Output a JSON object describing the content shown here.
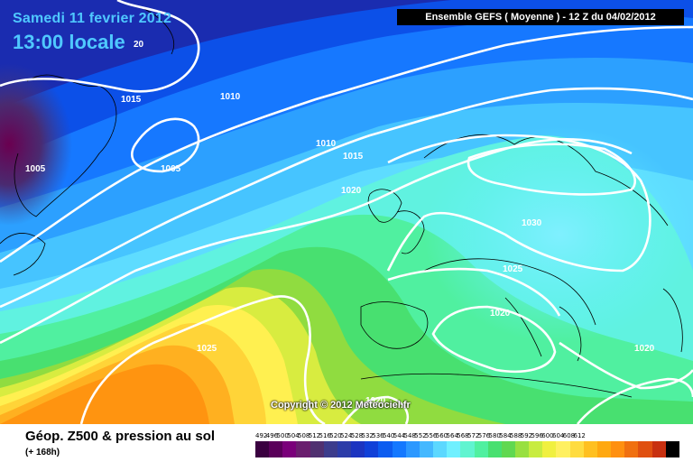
{
  "header": {
    "date": "Samedi 11 fevrier 2012",
    "time": "13:00 locale",
    "model": "Ensemble GEFS ( Moyenne )  -  12 Z du 04/02/2012"
  },
  "map": {
    "copyright": "Copyright © 2012 Meteociel.fr",
    "isobar_labels": [
      "20",
      "1015",
      "1010",
      "1010",
      "1015",
      "1005",
      "1005",
      "1020",
      "1030",
      "1025",
      "1020",
      "1025",
      "1020",
      "1020"
    ]
  },
  "legend": {
    "title": "Géop. Z500 & pression au sol",
    "subtitle": "(+ 168h)",
    "scale_values": [
      "492",
      "496",
      "500",
      "504",
      "508",
      "512",
      "516",
      "520",
      "524",
      "528",
      "532",
      "536",
      "540",
      "544",
      "548",
      "552",
      "556",
      "560",
      "564",
      "568",
      "572",
      "576",
      "580",
      "584",
      "588",
      "592",
      "596",
      "600",
      "604",
      "608",
      "612"
    ],
    "scale_colors": [
      "#3a0040",
      "#5a005a",
      "#7a007a",
      "#6a1e6e",
      "#503070",
      "#3c3c8c",
      "#2c3ca8",
      "#1c34c0",
      "#1040d8",
      "#0c5cf0",
      "#1478ff",
      "#2c98ff",
      "#44b8ff",
      "#5cd8ff",
      "#70f0ff",
      "#60f4d0",
      "#50f0a0",
      "#48e070",
      "#60d850",
      "#98e040",
      "#c8ec40",
      "#f0f040",
      "#fff060",
      "#ffdc40",
      "#ffc020",
      "#ffa810",
      "#ff9010",
      "#f07010",
      "#e05010",
      "#c83010",
      "#000000"
    ]
  }
}
